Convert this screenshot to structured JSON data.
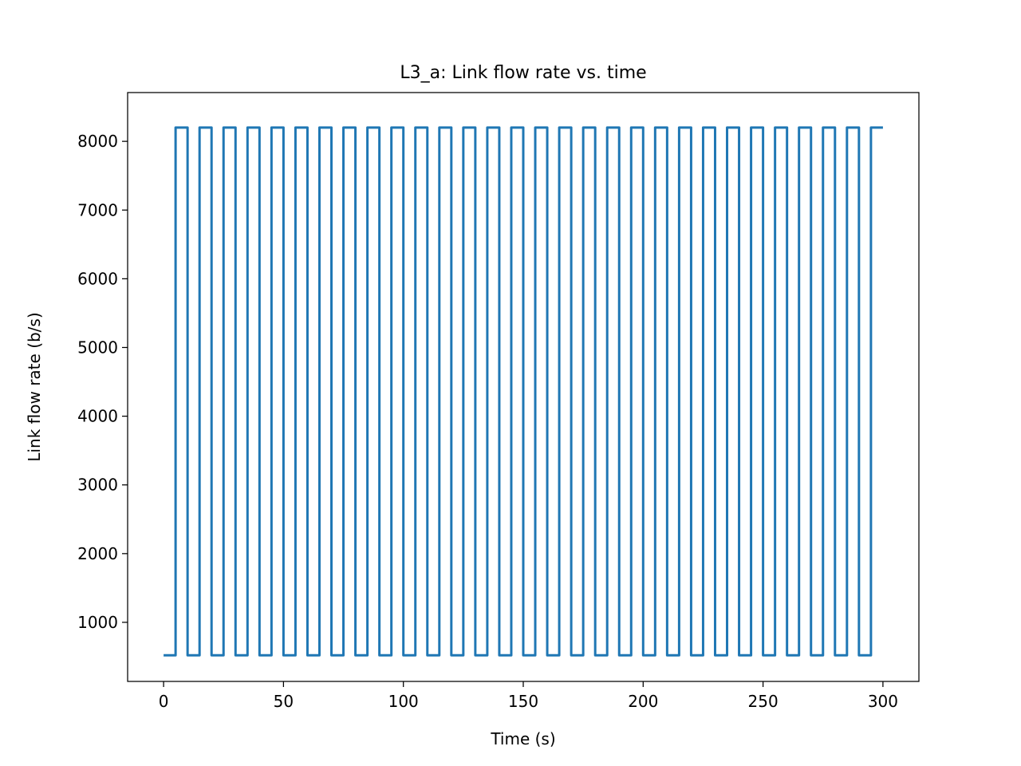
{
  "chart_data": {
    "type": "line",
    "title": "L3_a: Link flow rate vs. time",
    "xlabel": "Time (s)",
    "ylabel": "Link flow rate (b/s)",
    "xlim": [
      -15,
      315
    ],
    "ylim": [
      140,
      8710
    ],
    "xticks": [
      0,
      50,
      100,
      150,
      200,
      250,
      300
    ],
    "yticks": [
      1000,
      2000,
      3000,
      4000,
      5000,
      6000,
      7000,
      8000
    ],
    "grid": false,
    "legend": false,
    "series": [
      {
        "color": "#1f77b4",
        "x": [
          0,
          5,
          5,
          10,
          10,
          15,
          15,
          20,
          20,
          25,
          25,
          30,
          30,
          35,
          35,
          40,
          40,
          45,
          45,
          50,
          50,
          55,
          55,
          60,
          60,
          65,
          65,
          70,
          70,
          75,
          75,
          80,
          80,
          85,
          85,
          90,
          90,
          95,
          95,
          100,
          100,
          105,
          105,
          110,
          110,
          115,
          115,
          120,
          120,
          125,
          125,
          130,
          130,
          135,
          135,
          140,
          140,
          145,
          145,
          150,
          150,
          155,
          155,
          160,
          160,
          165,
          165,
          170,
          170,
          175,
          175,
          180,
          180,
          185,
          185,
          190,
          190,
          195,
          195,
          200,
          200,
          205,
          205,
          210,
          210,
          215,
          215,
          220,
          220,
          225,
          225,
          230,
          230,
          235,
          235,
          240,
          240,
          245,
          245,
          250,
          250,
          255,
          255,
          260,
          260,
          265,
          265,
          270,
          270,
          275,
          275,
          280,
          280,
          285,
          285,
          290,
          290,
          295,
          295,
          300
        ],
        "y": [
          520,
          520,
          8200,
          8200,
          520,
          520,
          8200,
          8200,
          520,
          520,
          8200,
          8200,
          520,
          520,
          8200,
          8200,
          520,
          520,
          8200,
          8200,
          520,
          520,
          8200,
          8200,
          520,
          520,
          8200,
          8200,
          520,
          520,
          8200,
          8200,
          520,
          520,
          8200,
          8200,
          520,
          520,
          8200,
          8200,
          520,
          520,
          8200,
          8200,
          520,
          520,
          8200,
          8200,
          520,
          520,
          8200,
          8200,
          520,
          520,
          8200,
          8200,
          520,
          520,
          8200,
          8200,
          520,
          520,
          8200,
          8200,
          520,
          520,
          8200,
          8200,
          520,
          520,
          8200,
          8200,
          520,
          520,
          8200,
          8200,
          520,
          520,
          8200,
          8200,
          520,
          520,
          8200,
          8200,
          520,
          520,
          8200,
          8200,
          520,
          520,
          8200,
          8200,
          520,
          520,
          8200,
          8200,
          520,
          520,
          8200,
          8200,
          520,
          520,
          8200,
          8200,
          520,
          520,
          8200,
          8200,
          520,
          520,
          8200,
          8200,
          520,
          520,
          8200,
          8200,
          520,
          520,
          8200,
          8200
        ]
      }
    ]
  }
}
